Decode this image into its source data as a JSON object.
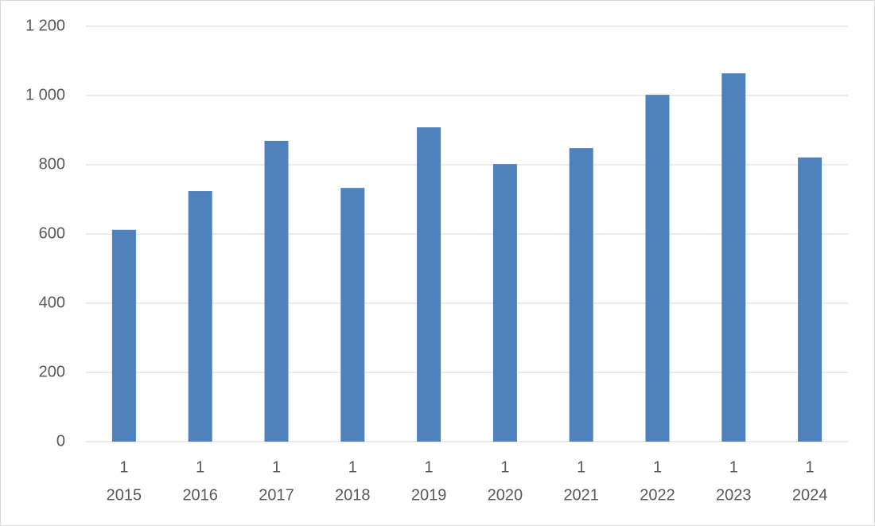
{
  "chart_data": {
    "type": "bar",
    "categories": [
      [
        "1",
        "2015"
      ],
      [
        "1",
        "2016"
      ],
      [
        "1",
        "2017"
      ],
      [
        "1",
        "2018"
      ],
      [
        "1",
        "2019"
      ],
      [
        "1",
        "2020"
      ],
      [
        "1",
        "2021"
      ],
      [
        "1",
        "2022"
      ],
      [
        "1",
        "2023"
      ],
      [
        "1",
        "2024"
      ]
    ],
    "values": [
      612,
      724,
      869,
      733,
      908,
      802,
      848,
      1002,
      1064,
      821
    ],
    "color": "#4f81bd",
    "ylim": [
      0,
      1200
    ],
    "yticks": [
      0,
      200,
      400,
      600,
      800,
      {
        "value": 1000,
        "label": "1 000"
      },
      {
        "value": 1200,
        "label": "1 200"
      }
    ],
    "grid": true
  }
}
